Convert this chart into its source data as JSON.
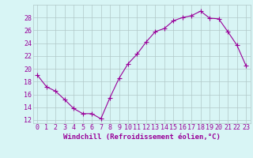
{
  "x": [
    0,
    1,
    2,
    3,
    4,
    5,
    6,
    7,
    8,
    9,
    10,
    11,
    12,
    13,
    14,
    15,
    16,
    17,
    18,
    19,
    20,
    21,
    22,
    23
  ],
  "y": [
    19.0,
    17.2,
    16.5,
    15.2,
    13.8,
    13.0,
    13.0,
    12.2,
    15.5,
    18.5,
    20.8,
    22.3,
    24.2,
    25.8,
    26.3,
    27.5,
    28.0,
    28.3,
    29.0,
    27.9,
    27.8,
    25.8,
    23.7,
    20.5
  ],
  "line_color": "#990099",
  "marker": "+",
  "marker_size": 4,
  "bg_color": "#d8f5f5",
  "grid_color": "#b0c8c8",
  "xlabel": "Windchill (Refroidissement éolien,°C)",
  "xlabel_color": "#990099",
  "tick_color": "#990099",
  "label_color": "#990099",
  "ylim": [
    11.5,
    30
  ],
  "yticks": [
    12,
    14,
    16,
    18,
    20,
    22,
    24,
    26,
    28
  ],
  "xlim": [
    -0.5,
    23.5
  ],
  "xticks": [
    0,
    1,
    2,
    3,
    4,
    5,
    6,
    7,
    8,
    9,
    10,
    11,
    12,
    13,
    14,
    15,
    16,
    17,
    18,
    19,
    20,
    21,
    22,
    23
  ],
  "tick_fontsize": 6,
  "xlabel_fontsize": 6.5
}
